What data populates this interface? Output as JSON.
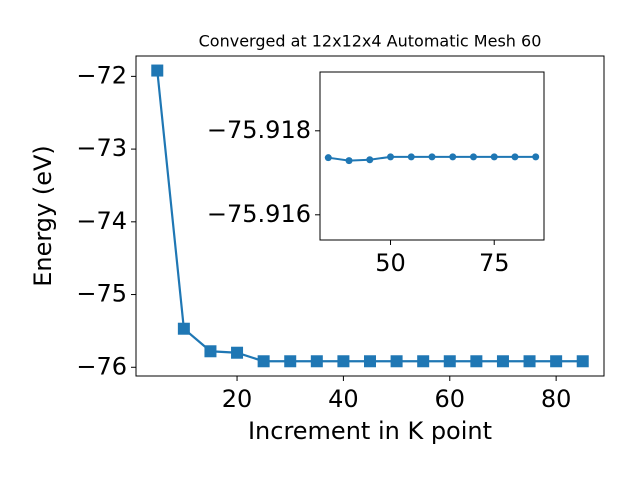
{
  "chart_data": [
    {
      "type": "line",
      "title": "Converged at 12x12x4 Automatic Mesh 60",
      "x_label": "Increment in K point",
      "y_label": "Energy (eV)",
      "x": [
        5,
        10,
        15,
        20,
        25,
        30,
        35,
        40,
        45,
        50,
        55,
        60,
        65,
        70,
        75,
        80,
        85
      ],
      "series": [
        {
          "name": "Energy",
          "color": "#1f77b4",
          "marker": "square",
          "values": [
            -71.92,
            -75.47,
            -75.78,
            -75.8,
            -75.9174,
            -75.9174,
            -75.91736,
            -75.91729,
            -75.91731,
            -75.91738,
            -75.91738,
            -75.91738,
            -75.91738,
            -75.91738,
            -75.91738,
            -75.91738,
            -75.91738
          ]
        }
      ],
      "xlim": [
        1,
        89
      ],
      "ylim": [
        -76.12,
        -71.72
      ],
      "xticks": [
        20,
        40,
        60,
        80
      ],
      "yticks": [
        {
          "value": -76,
          "label": "−76"
        },
        {
          "value": -75,
          "label": "−75"
        },
        {
          "value": -74,
          "label": "−74"
        },
        {
          "value": -73,
          "label": "−73"
        },
        {
          "value": -72,
          "label": "−72"
        }
      ]
    },
    {
      "type": "line",
      "x": [
        35,
        40,
        45,
        50,
        55,
        60,
        65,
        70,
        75,
        80,
        85
      ],
      "series": [
        {
          "name": "Energy",
          "color": "#1f77b4",
          "marker": "circle",
          "values": [
            -75.91736,
            -75.91729,
            -75.91731,
            -75.91738,
            -75.91738,
            -75.91738,
            -75.91738,
            -75.91738,
            -75.91738,
            -75.91738,
            -75.91738
          ]
        }
      ],
      "xlim": [
        33,
        87
      ],
      "ylim": [
        -75.9154,
        -75.9194
      ],
      "xticks": [
        50,
        75
      ],
      "yticks": [
        {
          "value": -75.916,
          "label": "−75.916"
        },
        {
          "value": -75.918,
          "label": "−75.918"
        }
      ]
    }
  ]
}
